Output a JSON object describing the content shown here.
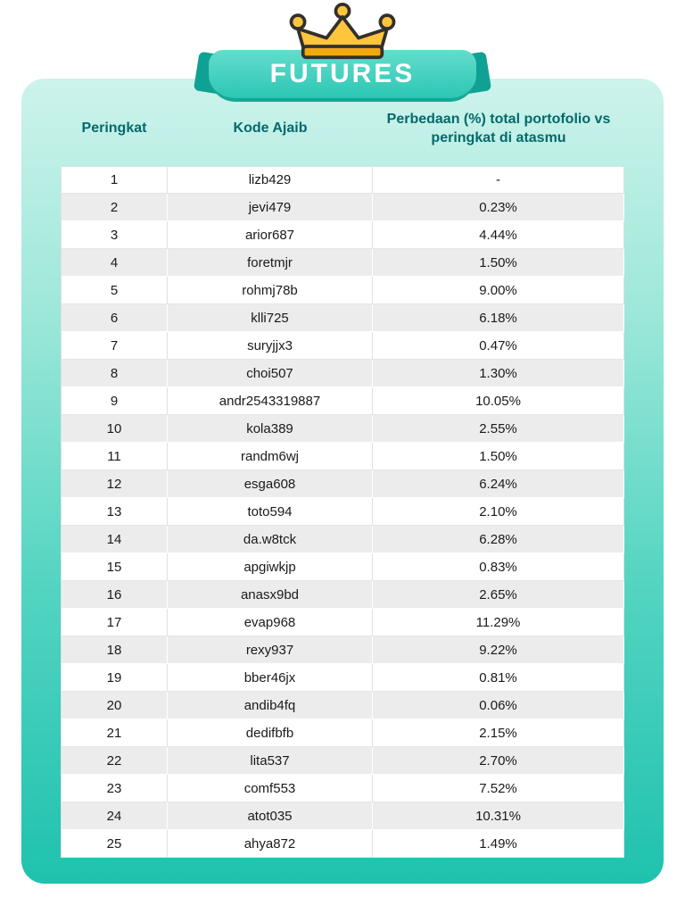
{
  "banner": {
    "title": "FUTURES"
  },
  "colors": {
    "accent_teal": "#1fc2ae",
    "banner_teal": "#2cc6b4",
    "header_text": "#04696b",
    "crown_gold": "#ffc53d",
    "row_alt": "#ececec"
  },
  "chart_data": {
    "type": "table",
    "title": "FUTURES",
    "columns": [
      "Peringkat",
      "Kode Ajaib",
      "Perbedaan (%) total portofolio vs peringkat di atasmu"
    ],
    "rows": [
      [
        "1",
        "lizb429",
        "-"
      ],
      [
        "2",
        "jevi479",
        "0.23%"
      ],
      [
        "3",
        "arior687",
        "4.44%"
      ],
      [
        "4",
        "foretmjr",
        "1.50%"
      ],
      [
        "5",
        "rohmj78b",
        "9.00%"
      ],
      [
        "6",
        "klli725",
        "6.18%"
      ],
      [
        "7",
        "suryjjx3",
        "0.47%"
      ],
      [
        "8",
        "choi507",
        "1.30%"
      ],
      [
        "9",
        "andr2543319887",
        "10.05%"
      ],
      [
        "10",
        "kola389",
        "2.55%"
      ],
      [
        "11",
        "randm6wj",
        "1.50%"
      ],
      [
        "12",
        "esga608",
        "6.24%"
      ],
      [
        "13",
        "toto594",
        "2.10%"
      ],
      [
        "14",
        "da.w8tck",
        "6.28%"
      ],
      [
        "15",
        "apgiwkjp",
        "0.83%"
      ],
      [
        "16",
        "anasx9bd",
        "2.65%"
      ],
      [
        "17",
        "evap968",
        "11.29%"
      ],
      [
        "18",
        "rexy937",
        "9.22%"
      ],
      [
        "19",
        "bber46jx",
        "0.81%"
      ],
      [
        "20",
        "andib4fq",
        "0.06%"
      ],
      [
        "21",
        "dedifbfb",
        "2.15%"
      ],
      [
        "22",
        "lita537",
        "2.70%"
      ],
      [
        "23",
        "comf553",
        "7.52%"
      ],
      [
        "24",
        "atot035",
        "10.31%"
      ],
      [
        "25",
        "ahya872",
        "1.49%"
      ]
    ]
  }
}
